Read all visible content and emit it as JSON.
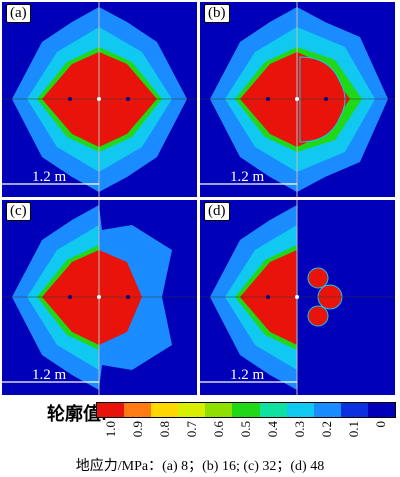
{
  "panels": [
    {
      "label": "(a)",
      "scale": "1.2 m"
    },
    {
      "label": "(b)",
      "scale": "1.2 m"
    },
    {
      "label": "(c)",
      "scale": "1.2 m"
    },
    {
      "label": "(d)",
      "scale": "1.2 m"
    }
  ],
  "legend": {
    "title": "轮廓值:",
    "ticks": [
      "1.0",
      "0.9",
      "0.8",
      "0.7",
      "0.6",
      "0.5",
      "0.4",
      "0.3",
      "0.2",
      "0.1",
      "0"
    ],
    "colors": [
      "#e8140c",
      "#ff7a12",
      "#ffd800",
      "#d8f000",
      "#8ee000",
      "#20d818",
      "#10e0a0",
      "#10c8f0",
      "#1a8cff",
      "#0a30e0",
      "#0000b8"
    ]
  },
  "caption": "地应力/MPa：(a) 8；(b) 16; (c) 32；(d) 48"
}
